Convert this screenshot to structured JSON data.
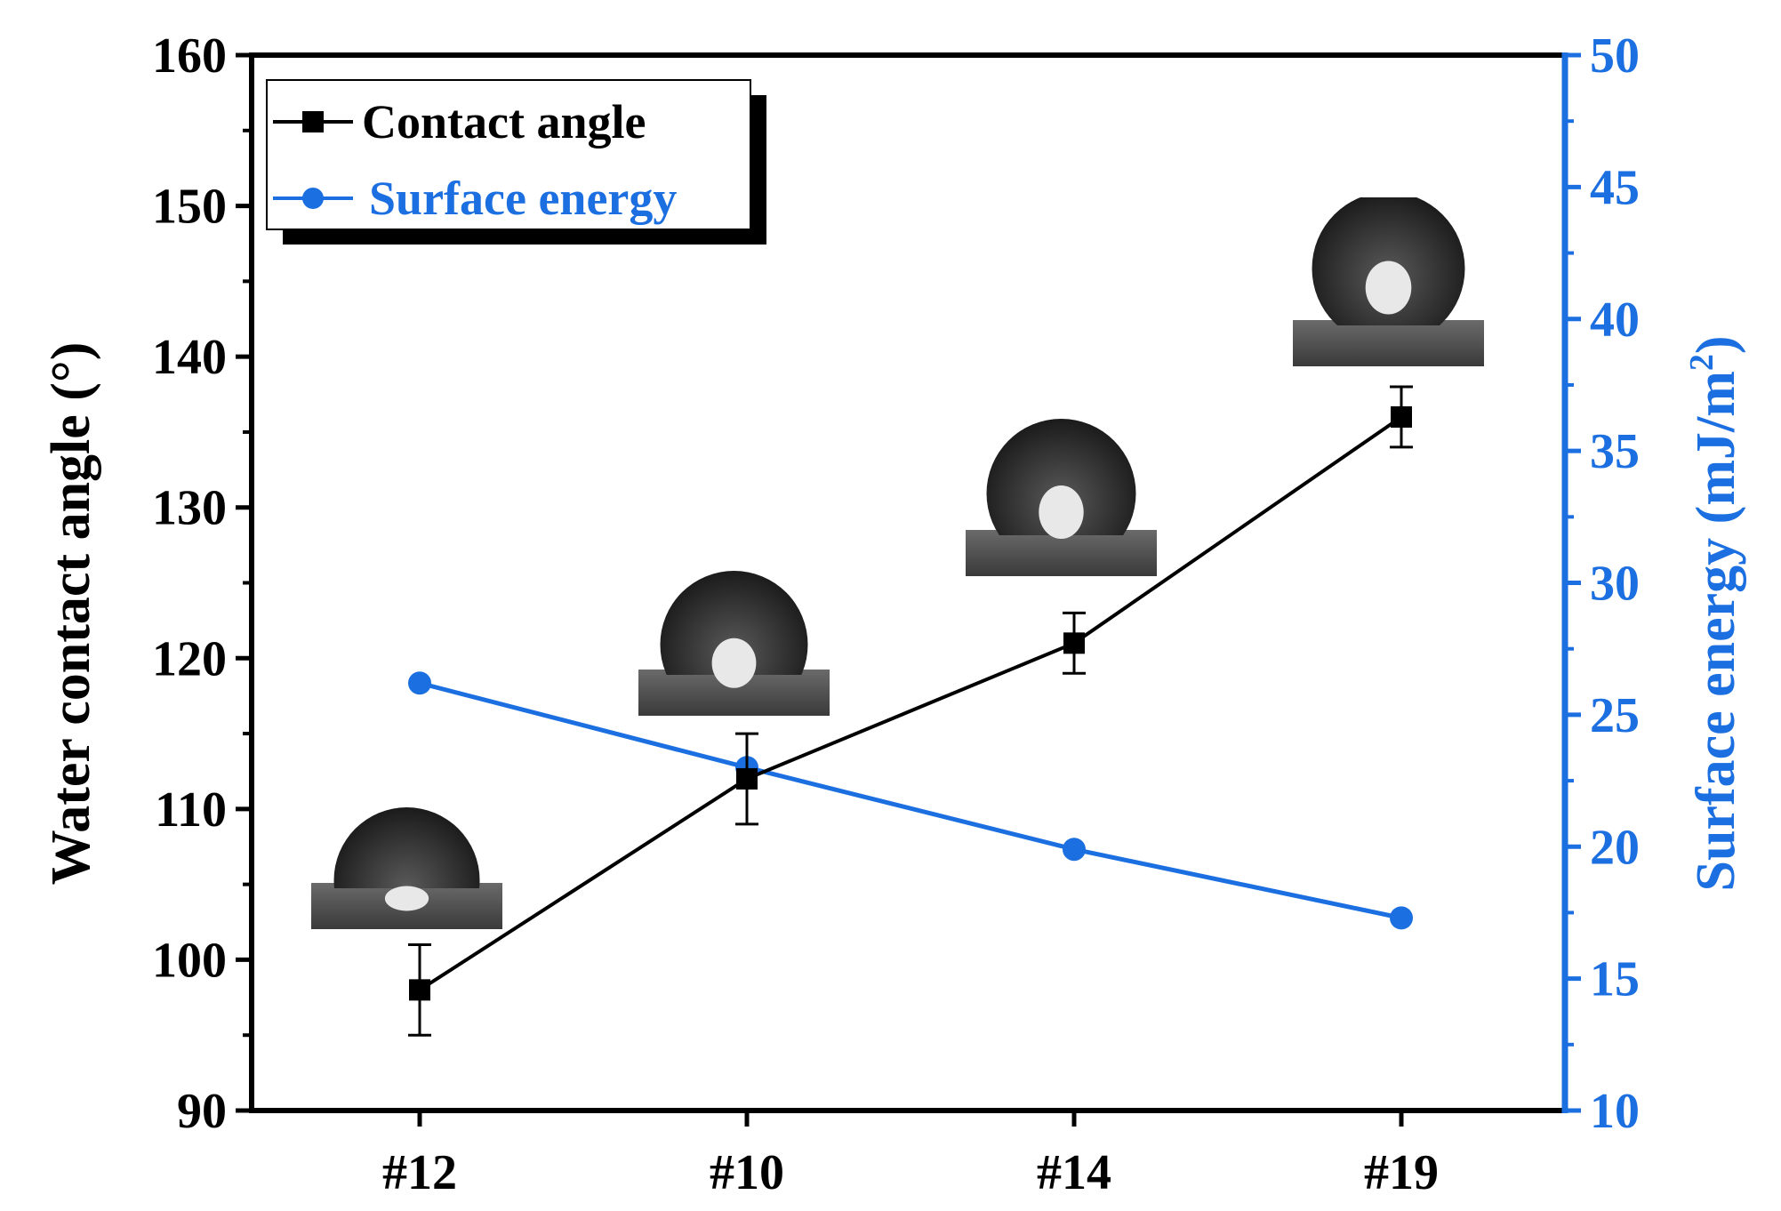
{
  "chart_data": {
    "type": "line",
    "categories": [
      "#12",
      "#10",
      "#14",
      "#19"
    ],
    "series": [
      {
        "name": "Contact angle",
        "axis": "left",
        "color": "#000000",
        "marker": "square",
        "values": [
          98,
          112,
          121,
          136
        ],
        "errors": [
          3,
          3,
          2,
          2
        ]
      },
      {
        "name": "Surface energy",
        "axis": "right",
        "color": "#1c6fe0",
        "marker": "circle",
        "values": [
          26.2,
          23.0,
          19.9,
          17.3
        ]
      }
    ],
    "ylabel_left": "Water contact angle (°)",
    "ylabel_right_main": "Surface energy (mJ/m",
    "ylabel_right_sup": "2",
    "ylabel_right_close": ")",
    "ylim_left": [
      90,
      160
    ],
    "yticks_left": [
      90,
      100,
      110,
      120,
      130,
      140,
      150,
      160
    ],
    "ylim_right": [
      10,
      50
    ],
    "yticks_right": [
      10,
      15,
      20,
      25,
      30,
      35,
      40,
      45,
      50
    ],
    "legend_position": "top-left",
    "insets": [
      {
        "category": "#12",
        "depicts": "water droplet on surface"
      },
      {
        "category": "#10",
        "depicts": "water droplet on surface"
      },
      {
        "category": "#14",
        "depicts": "water droplet on surface"
      },
      {
        "category": "#19",
        "depicts": "water droplet on surface"
      }
    ]
  }
}
